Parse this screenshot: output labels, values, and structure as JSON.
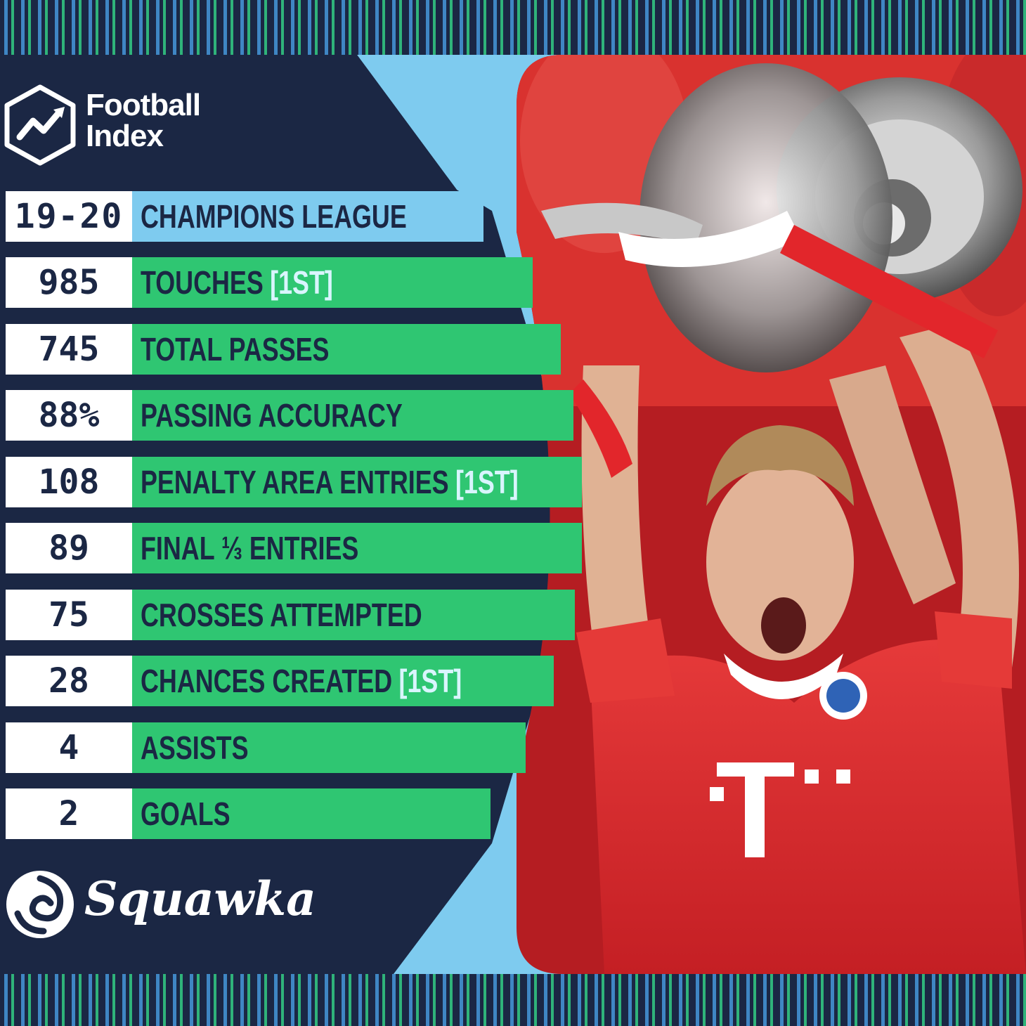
{
  "brand": {
    "name_line1": "Football",
    "name_line2": "Index",
    "icon": "trend-arrow-hexagon-icon"
  },
  "header": {
    "season": "19-20",
    "competition": "CHAMPIONS LEAGUE"
  },
  "stats": [
    {
      "value": "985",
      "label": "TOUCHES",
      "rank": "[1ST]"
    },
    {
      "value": "745",
      "label": "TOTAL PASSES",
      "rank": ""
    },
    {
      "value": "88%",
      "label": "PASSING ACCURACY",
      "rank": ""
    },
    {
      "value": "108",
      "label": "PENALTY AREA ENTRIES",
      "rank": "[1ST]"
    },
    {
      "value": "89",
      "label": "FINAL ⅓ ENTRIES",
      "rank": ""
    },
    {
      "value": "75",
      "label": "CROSSES ATTEMPTED",
      "rank": ""
    },
    {
      "value": "28",
      "label": "CHANCES CREATED",
      "rank": "[1ST]"
    },
    {
      "value": "4",
      "label": "ASSISTS",
      "rank": ""
    },
    {
      "value": "2",
      "label": "GOALS",
      "rank": ""
    }
  ],
  "footer": {
    "logo_text": "Squawka",
    "icon": "squawka-swirl-icon"
  },
  "colors": {
    "navy": "#1b2744",
    "light_blue": "#7ecbef",
    "green": "#2fc672",
    "white": "#ffffff",
    "red": "#e2262b"
  }
}
